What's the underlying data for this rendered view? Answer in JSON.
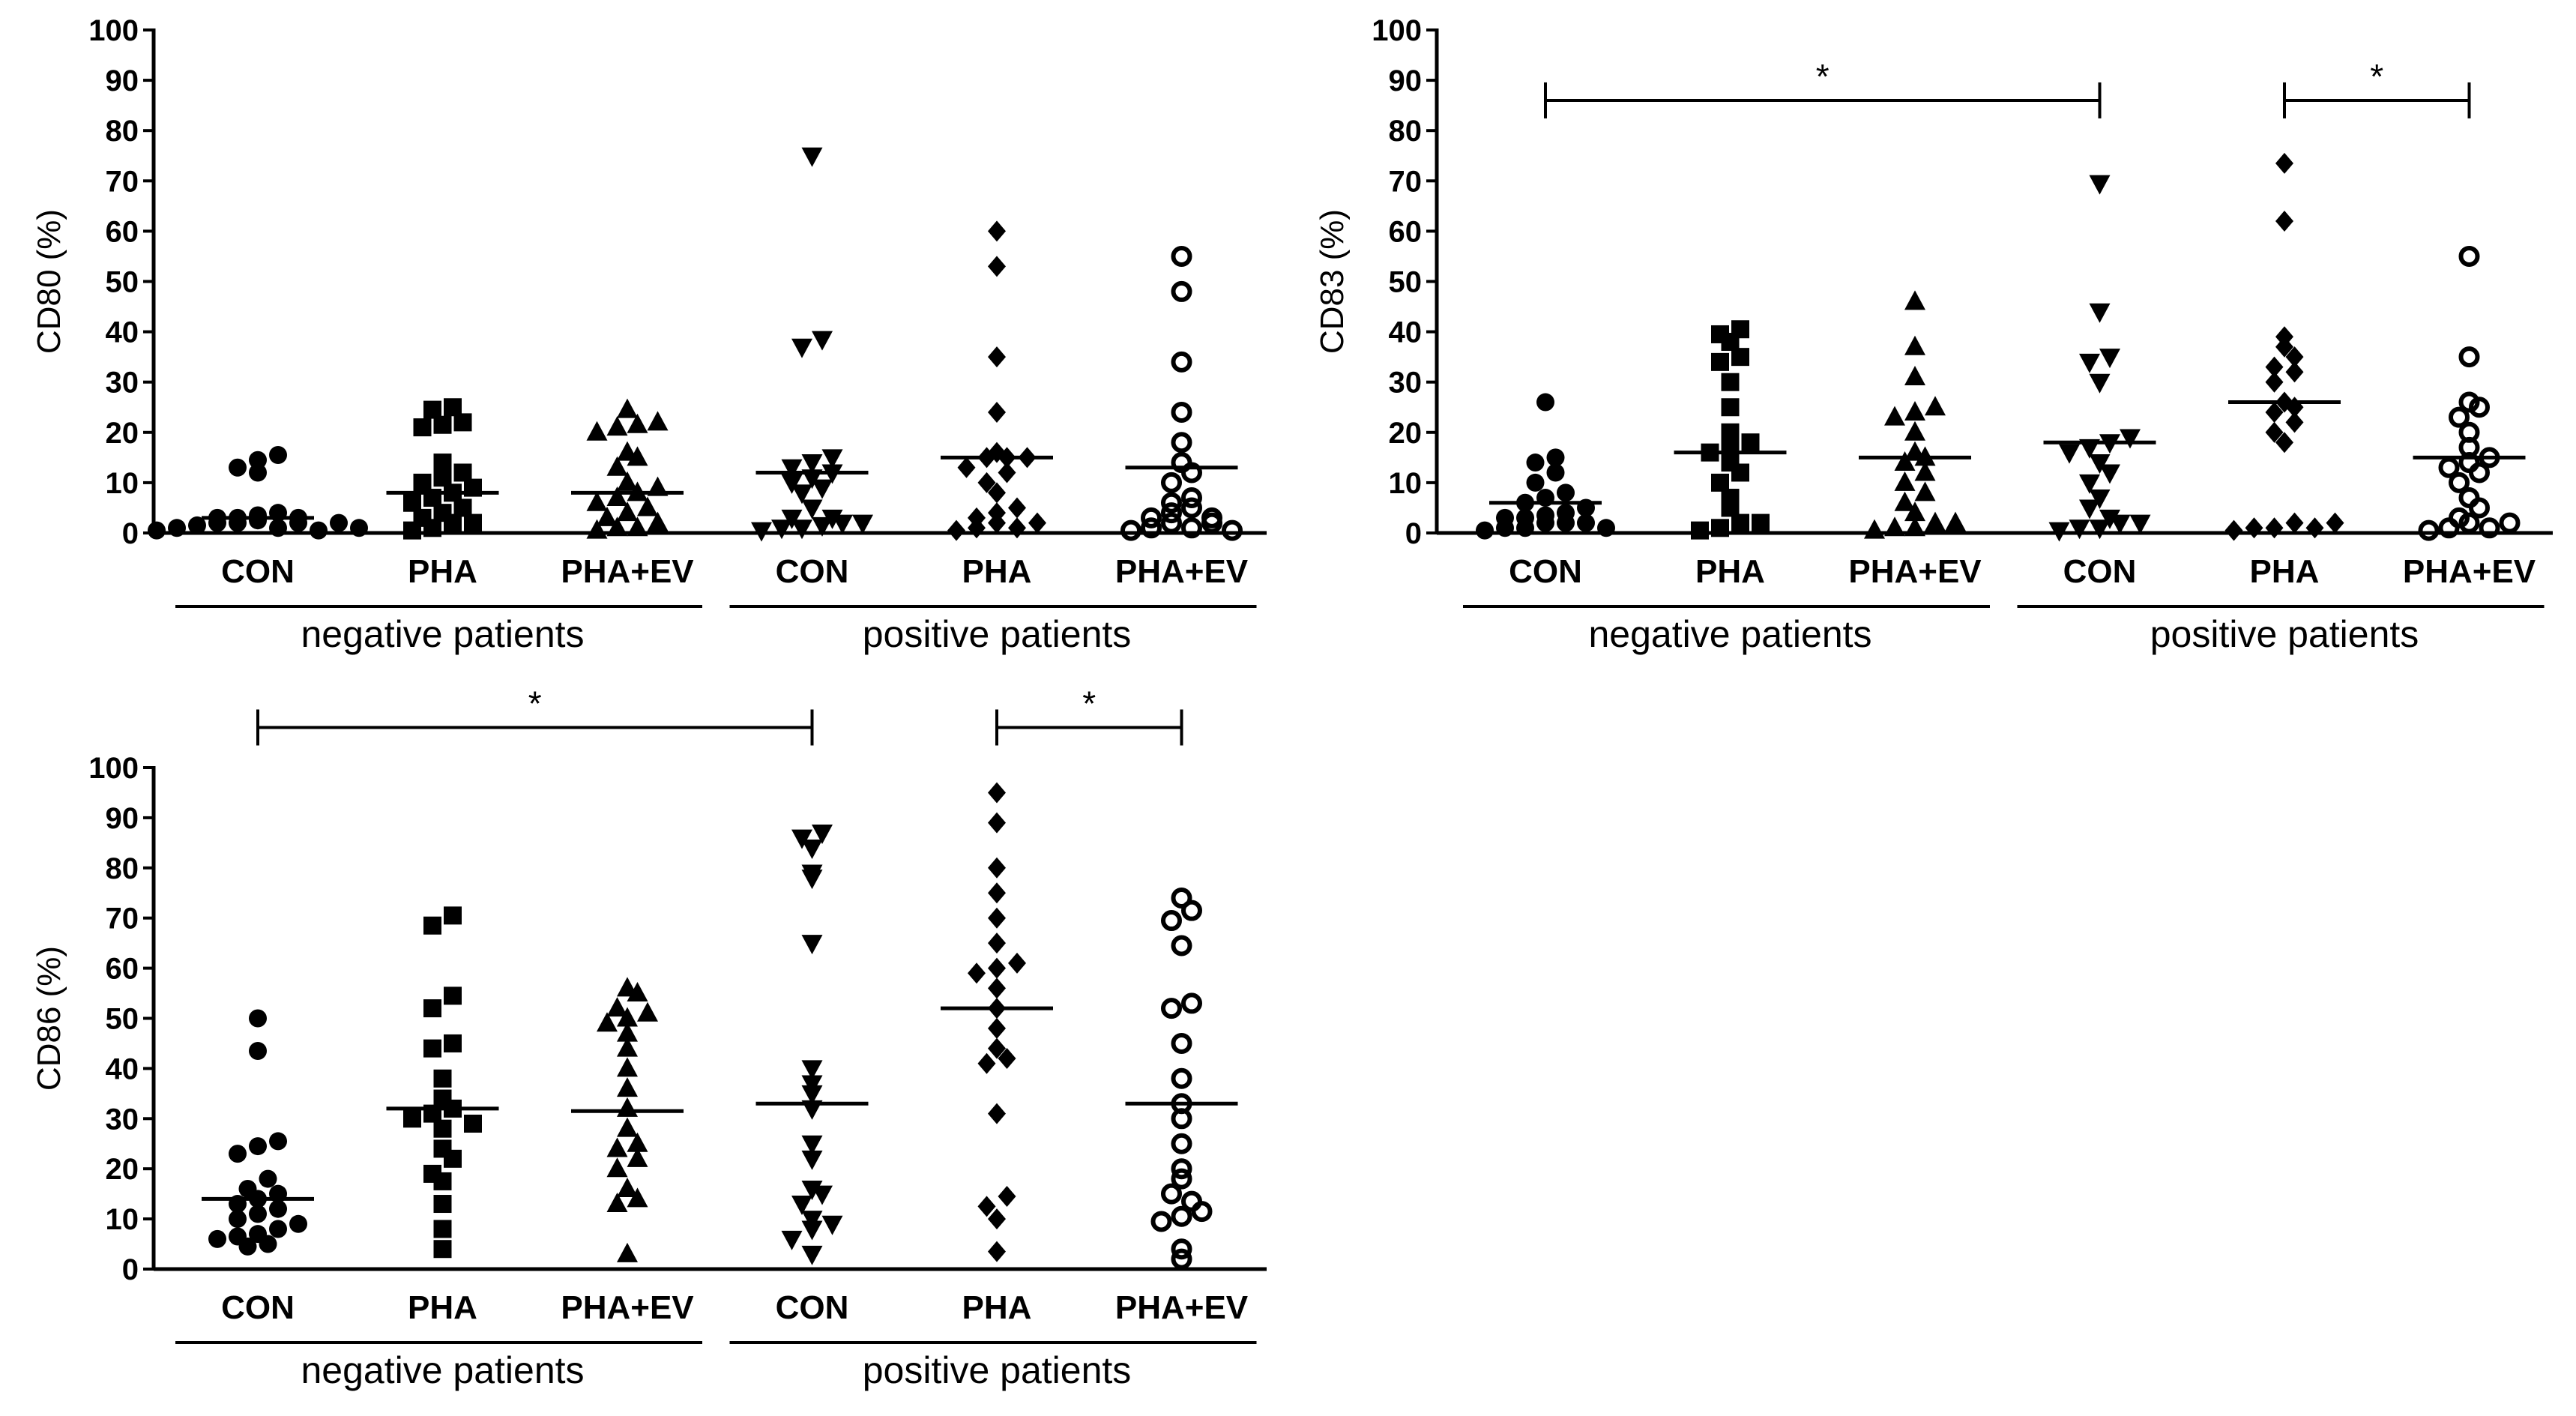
{
  "colors": {
    "ink": "#000000",
    "background": "#ffffff"
  },
  "group_labels": {
    "negative": "negative patients",
    "positive": "positive patients"
  },
  "chart_data": [
    {
      "id": "cd80",
      "type": "scatter",
      "ylabel": "CD80 (%)",
      "ylim": [
        0,
        100
      ],
      "yticks": [
        0,
        10,
        20,
        30,
        40,
        50,
        60,
        70,
        80,
        90,
        100
      ],
      "categories": [
        "CON",
        "PHA",
        "PHA+EV",
        "CON",
        "PHA",
        "PHA+EV"
      ],
      "series": [
        {
          "group": "negative patients",
          "name": "CON",
          "marker": "circle",
          "median": 3,
          "values": [
            0.5,
            1,
            1.5,
            2,
            2,
            2.5,
            3,
            3,
            3.5,
            4,
            1,
            2,
            3,
            0.5,
            12,
            13,
            14.5,
            15.5,
            2,
            1
          ]
        },
        {
          "group": "negative patients",
          "name": "PHA",
          "marker": "square",
          "median": 8,
          "values": [
            0.5,
            1,
            2,
            3,
            4,
            5,
            6,
            7,
            8,
            9,
            10,
            11,
            12,
            14,
            21,
            21.5,
            22,
            24.5,
            25,
            2
          ]
        },
        {
          "group": "negative patients",
          "name": "PHA+EV",
          "marker": "triangle-up",
          "median": 8,
          "values": [
            0.5,
            1,
            1,
            2,
            3,
            4,
            5,
            6,
            7,
            8,
            9,
            10,
            13,
            15,
            16,
            20,
            21,
            21.5,
            22,
            24.5
          ]
        },
        {
          "group": "positive patients",
          "name": "CON",
          "marker": "triangle-down",
          "median": 12,
          "values": [
            0.5,
            1,
            1,
            1.5,
            2,
            3,
            5,
            8,
            10,
            11,
            12,
            13,
            14,
            15,
            37,
            38.5,
            75,
            2,
            3,
            9
          ]
        },
        {
          "group": "positive patients",
          "name": "PHA",
          "marker": "diamond",
          "median": 15,
          "values": [
            0.5,
            1,
            2,
            3,
            4,
            8,
            10,
            13,
            15,
            16,
            15,
            15,
            24,
            35,
            53,
            60,
            12,
            5,
            1,
            2
          ]
        },
        {
          "group": "positive patients",
          "name": "PHA+EV",
          "marker": "circle-open",
          "median": 13,
          "values": [
            0.5,
            1,
            2,
            3,
            4,
            5,
            6,
            7,
            10,
            12,
            14,
            18,
            24,
            34,
            48,
            55,
            1,
            2,
            3,
            0.5
          ]
        }
      ],
      "significance": []
    },
    {
      "id": "cd83",
      "type": "scatter",
      "ylabel": "CD83 (%)",
      "ylim": [
        0,
        100
      ],
      "yticks": [
        0,
        10,
        20,
        30,
        40,
        50,
        60,
        70,
        80,
        90,
        100
      ],
      "categories": [
        "CON",
        "PHA",
        "PHA+EV",
        "CON",
        "PHA",
        "PHA+EV"
      ],
      "series": [
        {
          "group": "negative patients",
          "name": "CON",
          "marker": "circle",
          "median": 6,
          "values": [
            0.5,
            1,
            1,
            2,
            2,
            3,
            3,
            3.5,
            4,
            5,
            6,
            7,
            8,
            10,
            12,
            14,
            15,
            26,
            2,
            1
          ]
        },
        {
          "group": "negative patients",
          "name": "PHA",
          "marker": "square",
          "median": 16,
          "values": [
            0.5,
            1,
            2,
            5,
            7,
            10,
            12,
            14,
            16,
            17,
            18,
            20,
            25,
            30,
            34,
            35,
            38,
            39.5,
            40.5,
            2
          ]
        },
        {
          "group": "negative patients",
          "name": "PHA+EV",
          "marker": "triangle-up",
          "median": 15,
          "values": [
            0.5,
            1,
            1,
            2,
            4,
            6,
            8,
            10,
            12,
            14,
            15,
            16,
            20,
            23,
            24,
            25,
            31,
            37,
            46,
            2
          ]
        },
        {
          "group": "positive patients",
          "name": "CON",
          "marker": "triangle-down",
          "median": 18,
          "values": [
            0.5,
            1,
            1,
            2,
            5,
            7,
            10,
            12,
            14,
            16,
            17,
            18,
            19,
            30,
            34,
            35,
            44,
            69.5,
            2,
            3
          ]
        },
        {
          "group": "positive patients",
          "name": "PHA",
          "marker": "diamond",
          "median": 26,
          "values": [
            0.5,
            1,
            1,
            2,
            20,
            22,
            24,
            25,
            26,
            30,
            32,
            33,
            35,
            37,
            39,
            62,
            73.5,
            1,
            2,
            18
          ]
        },
        {
          "group": "positive patients",
          "name": "PHA+EV",
          "marker": "circle-open",
          "median": 15,
          "values": [
            0.5,
            1,
            2,
            3,
            5,
            7,
            10,
            12,
            13,
            14,
            15,
            17,
            20,
            23,
            25,
            26,
            35,
            55,
            1,
            2
          ]
        }
      ],
      "significance": [
        {
          "from": 0,
          "to": 3,
          "level": 0.86,
          "label": "*"
        },
        {
          "from": 4,
          "to": 5,
          "level": 0.86,
          "label": "*"
        }
      ]
    },
    {
      "id": "cd86",
      "type": "scatter",
      "ylabel": "CD86 (%)",
      "ylim": [
        0,
        100
      ],
      "yticks": [
        0,
        10,
        20,
        30,
        40,
        50,
        60,
        70,
        80,
        90,
        100
      ],
      "categories": [
        "CON",
        "PHA",
        "PHA+EV",
        "CON",
        "PHA",
        "PHA+EV"
      ],
      "series": [
        {
          "group": "negative patients",
          "name": "CON",
          "marker": "circle",
          "median": 14,
          "values": [
            4.5,
            5,
            6,
            6.5,
            7,
            8,
            9,
            10,
            11,
            12,
            13,
            14,
            15,
            16,
            18,
            23,
            24.5,
            25.5,
            43.5,
            50
          ]
        },
        {
          "group": "negative patients",
          "name": "PHA",
          "marker": "square",
          "median": 32,
          "values": [
            4,
            8,
            13,
            17.5,
            19,
            22,
            24,
            28,
            30,
            31,
            32,
            34,
            38,
            44,
            45,
            52,
            54.5,
            68.5,
            70.5,
            29
          ]
        },
        {
          "group": "negative patients",
          "name": "PHA+EV",
          "marker": "triangle-up",
          "median": 31.5,
          "values": [
            3,
            13,
            14,
            16,
            20,
            22,
            24,
            25,
            28,
            32,
            36,
            40,
            44,
            47,
            49,
            50,
            51,
            52,
            55,
            56
          ]
        },
        {
          "group": "positive patients",
          "name": "CON",
          "marker": "triangle-down",
          "median": 33,
          "values": [
            3,
            6,
            8,
            9,
            10,
            13,
            15,
            16,
            22,
            25,
            32,
            35,
            37,
            40,
            65,
            78,
            79,
            84,
            86,
            87
          ]
        },
        {
          "group": "positive patients",
          "name": "PHA",
          "marker": "diamond",
          "median": 52,
          "values": [
            3.5,
            10,
            12.5,
            14.5,
            31,
            41,
            42,
            44,
            48,
            52,
            56,
            59,
            60,
            61,
            65,
            70,
            75,
            80,
            89,
            95
          ]
        },
        {
          "group": "positive patients",
          "name": "PHA+EV",
          "marker": "circle-open",
          "median": 33,
          "values": [
            2,
            4,
            9.5,
            10.5,
            11.5,
            15,
            18,
            20,
            25,
            30,
            33,
            38,
            45,
            52,
            53,
            64.5,
            69.5,
            71.5,
            74,
            13.5
          ]
        }
      ],
      "significance": [
        {
          "from": 0,
          "to": 3,
          "level": 1.08,
          "label": "*"
        },
        {
          "from": 4,
          "to": 5,
          "level": 1.08,
          "label": "*"
        }
      ]
    }
  ]
}
